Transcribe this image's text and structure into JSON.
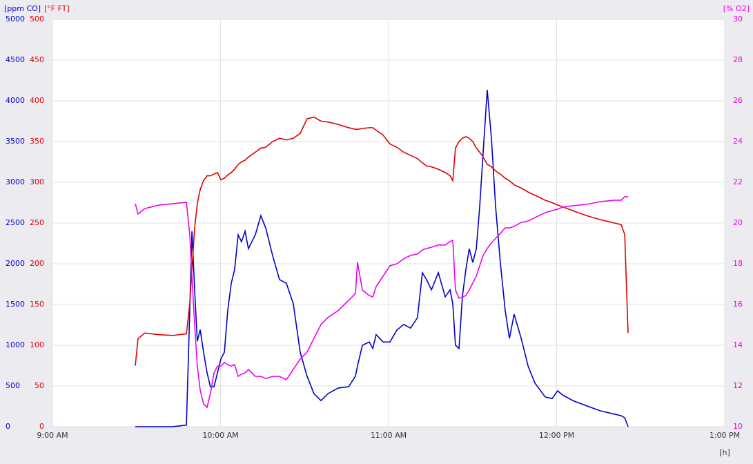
{
  "chart_data": {
    "type": "line",
    "y_label": "[ppm CO]",
    "y2_label": "[°F FT]",
    "y3_label": "[% O2]",
    "x_label": "[h]",
    "grid": true,
    "xlim": [
      9,
      13
    ],
    "xticks": [
      {
        "value": 9,
        "label": "9:00 AM"
      },
      {
        "value": 10,
        "label": "10:00 AM"
      },
      {
        "value": 11,
        "label": "11:00 AM"
      },
      {
        "value": 12,
        "label": "12:00 PM"
      },
      {
        "value": 13,
        "label": "1:00 PM"
      }
    ],
    "ylim": [
      0,
      5000
    ],
    "yticks": [
      0,
      500,
      1000,
      1500,
      2000,
      2500,
      3000,
      3500,
      4000,
      4500,
      5000
    ],
    "y2lim": [
      0,
      500
    ],
    "y2ticks": [
      0,
      50,
      100,
      150,
      200,
      250,
      300,
      350,
      400,
      450,
      500
    ],
    "y3lim": [
      10,
      30
    ],
    "y3ticks": [
      10,
      12,
      14,
      16,
      18,
      20,
      22,
      24,
      26,
      28,
      30
    ],
    "x": [
      9.493,
      9.509,
      9.55,
      9.632,
      9.715,
      9.797,
      9.817,
      9.83,
      9.846,
      9.862,
      9.879,
      9.899,
      9.92,
      9.94,
      9.961,
      9.982,
      10.002,
      10.023,
      10.043,
      10.064,
      10.084,
      10.105,
      10.125,
      10.146,
      10.166,
      10.207,
      10.24,
      10.269,
      10.31,
      10.351,
      10.392,
      10.433,
      10.474,
      10.515,
      10.556,
      10.598,
      10.639,
      10.7,
      10.762,
      10.803,
      10.815,
      10.844,
      10.885,
      10.906,
      10.926,
      10.967,
      11.008,
      11.049,
      11.09,
      11.131,
      11.172,
      11.201,
      11.226,
      11.255,
      11.296,
      11.337,
      11.366,
      11.382,
      11.398,
      11.419,
      11.439,
      11.46,
      11.48,
      11.501,
      11.522,
      11.542,
      11.563,
      11.587,
      11.612,
      11.637,
      11.665,
      11.694,
      11.719,
      11.747,
      11.789,
      11.83,
      11.871,
      11.932,
      11.973,
      12.006,
      12.035,
      12.097,
      12.179,
      12.261,
      12.343,
      12.384,
      12.405,
      12.425
    ],
    "series": [
      {
        "name": "[ppm CO]",
        "color": "#0000cc",
        "axis": "y",
        "values": [
          0,
          0,
          0,
          0,
          0,
          20,
          1425,
          2400,
          1680,
          1050,
          1190,
          915,
          660,
          490,
          490,
          660,
          830,
          915,
          1425,
          1760,
          1930,
          2355,
          2270,
          2400,
          2185,
          2355,
          2590,
          2440,
          2100,
          1805,
          1760,
          1510,
          915,
          620,
          405,
          320,
          405,
          475,
          490,
          620,
          745,
          1000,
          1040,
          960,
          1130,
          1040,
          1040,
          1185,
          1255,
          1210,
          1340,
          1890,
          1805,
          1680,
          1890,
          1595,
          1680,
          1510,
          1000,
          960,
          1595,
          1930,
          2185,
          2015,
          2185,
          2695,
          3375,
          4135,
          3540,
          2695,
          2015,
          1425,
          1085,
          1380,
          1085,
          745,
          535,
          365,
          345,
          440,
          390,
          320,
          255,
          195,
          155,
          135,
          110,
          0
        ]
      },
      {
        "name": "[°F FT]",
        "color": "#dd0000",
        "axis": "y2",
        "values": [
          75,
          108,
          115,
          113,
          112,
          114,
          151,
          193,
          244,
          274,
          291,
          302,
          308,
          308,
          310,
          312,
          303,
          305,
          309,
          312,
          316,
          322,
          325,
          327,
          331,
          337,
          342,
          343,
          350,
          354,
          352,
          354,
          360,
          378,
          380,
          375,
          374,
          371,
          367,
          365,
          365,
          366,
          367,
          367,
          364,
          358,
          347,
          343,
          337,
          333,
          329,
          324,
          320,
          319,
          316,
          312,
          308,
          302,
          342,
          350,
          354,
          356,
          354,
          350,
          342,
          337,
          331,
          322,
          319,
          314,
          310,
          305,
          302,
          297,
          293,
          288,
          284,
          278,
          275,
          272,
          270,
          265,
          259,
          254,
          250,
          248,
          236,
          115
        ]
      },
      {
        "name": "[% O2]",
        "color": "#ee00ee",
        "axis": "y3",
        "values": [
          20.95,
          20.44,
          20.71,
          20.88,
          20.95,
          21.02,
          19.42,
          17.39,
          15.02,
          12.98,
          11.8,
          11.12,
          10.95,
          11.63,
          12.64,
          12.98,
          12.98,
          13.15,
          13.05,
          12.98,
          13.05,
          12.47,
          12.58,
          12.64,
          12.81,
          12.47,
          12.47,
          12.37,
          12.47,
          12.47,
          12.31,
          12.81,
          13.32,
          13.66,
          14.34,
          15.02,
          15.36,
          15.7,
          16.2,
          16.54,
          18.07,
          16.71,
          16.44,
          16.37,
          16.88,
          17.39,
          17.9,
          18,
          18.24,
          18.41,
          18.48,
          18.68,
          18.75,
          18.81,
          18.92,
          18.92,
          19.09,
          19.15,
          16.71,
          16.31,
          16.37,
          16.44,
          16.71,
          17.05,
          17.39,
          17.9,
          18.41,
          18.75,
          19.02,
          19.25,
          19.49,
          19.76,
          19.76,
          19.83,
          20.03,
          20.1,
          20.27,
          20.51,
          20.61,
          20.68,
          20.78,
          20.85,
          20.92,
          21.05,
          21.12,
          21.12,
          21.29,
          21.29
        ]
      }
    ]
  }
}
